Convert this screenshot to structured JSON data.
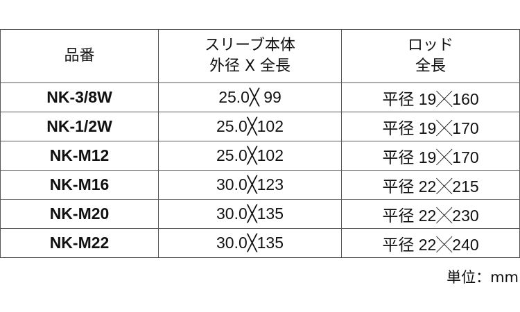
{
  "headers": {
    "code": "品番",
    "sleeve_line1": "スリーブ本体",
    "sleeve_line2": "外径 X 全長",
    "rod_line1": "ロッド",
    "rod_line2": "全長"
  },
  "rows": [
    {
      "code": "NK-3/8W",
      "sleeve": "25.0╳  99",
      "rod": "平径 19╳160"
    },
    {
      "code": "NK-1/2W",
      "sleeve": "25.0╳102",
      "rod": "平径 19╳170"
    },
    {
      "code": "NK-M12",
      "sleeve": "25.0╳102",
      "rod": "平径 19╳170"
    },
    {
      "code": "NK-M16",
      "sleeve": "30.0╳123",
      "rod": "平径 22╳215"
    },
    {
      "code": "NK-M20",
      "sleeve": "30.0╳135",
      "rod": "平径 22╳230"
    },
    {
      "code": "NK-M22",
      "sleeve": "30.0╳135",
      "rod": "平径 22╳240"
    }
  ],
  "unit": "単位：mm"
}
